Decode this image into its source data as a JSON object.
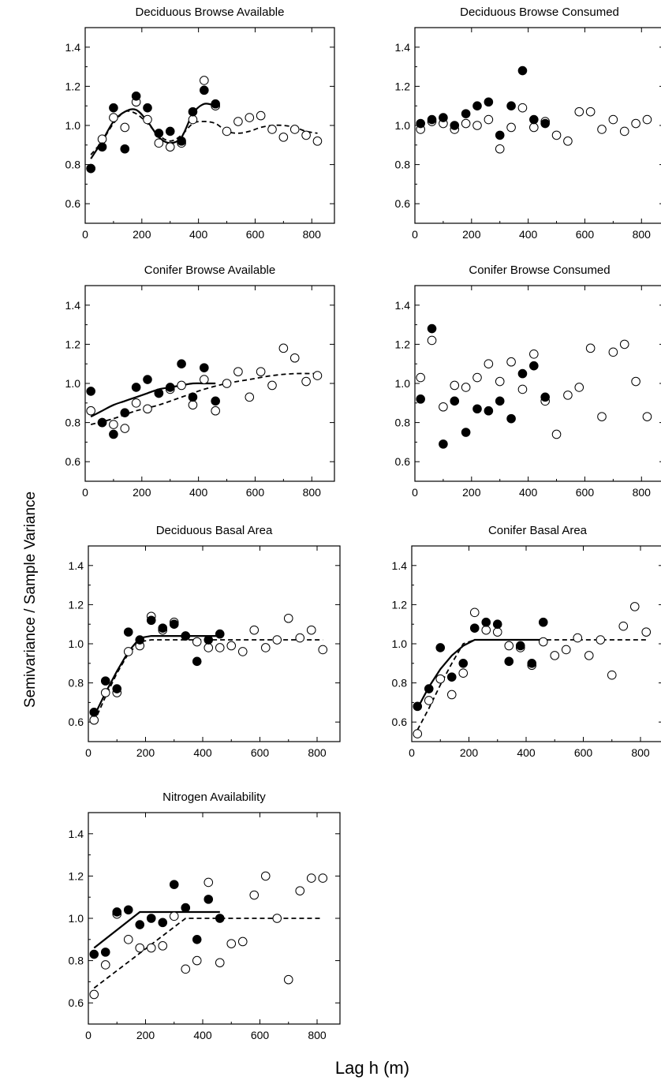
{
  "figure": {
    "ylabel": "Semivariance / Sample Variance",
    "xlabel": "Lag h (m)"
  },
  "chart_data": [
    {
      "type": "scatter",
      "title": "Deciduous Browse Available",
      "xlim": [
        0,
        880
      ],
      "ylim": [
        0.5,
        1.5
      ],
      "xticks": [
        0,
        200,
        400,
        600,
        800
      ],
      "yticks": [
        0.6,
        0.8,
        1.0,
        1.2,
        1.4
      ],
      "series": [
        {
          "marker": "filled",
          "x": [
            20,
            60,
            100,
            140,
            180,
            220,
            260,
            300,
            340,
            380,
            420,
            460
          ],
          "y": [
            0.78,
            0.89,
            1.09,
            0.88,
            1.15,
            1.09,
            0.96,
            0.97,
            0.92,
            1.07,
            1.18,
            1.11
          ]
        },
        {
          "marker": "open",
          "x": [
            20,
            60,
            100,
            140,
            180,
            220,
            260,
            300,
            340,
            380,
            420,
            460,
            500,
            540,
            580,
            620,
            660,
            700,
            740,
            780,
            820
          ],
          "y": [
            0.78,
            0.93,
            1.04,
            0.99,
            1.12,
            1.03,
            0.91,
            0.89,
            0.91,
            1.03,
            1.23,
            1.1,
            0.97,
            1.02,
            1.04,
            1.05,
            0.98,
            0.94,
            0.98,
            0.95,
            0.92
          ]
        }
      ],
      "curves": [
        {
          "style": "solid",
          "x": [
            20,
            60,
            100,
            140,
            180,
            220,
            260,
            300,
            340,
            380,
            420,
            460
          ],
          "y": [
            0.83,
            0.92,
            1.02,
            1.07,
            1.08,
            1.02,
            0.94,
            0.91,
            0.94,
            1.06,
            1.11,
            1.1
          ]
        },
        {
          "style": "dashed",
          "x": [
            20,
            60,
            100,
            140,
            180,
            220,
            260,
            300,
            340,
            380,
            420,
            460,
            500,
            540,
            580,
            620,
            660,
            700,
            740,
            780,
            820
          ],
          "y": [
            0.85,
            0.92,
            1.01,
            1.07,
            1.06,
            1.01,
            0.95,
            0.92,
            0.95,
            1.01,
            1.02,
            1.01,
            0.97,
            0.96,
            0.97,
            0.99,
            1.0,
            1.0,
            0.99,
            0.97,
            0.96
          ]
        }
      ]
    },
    {
      "type": "scatter",
      "title": "Deciduous Browse Consumed",
      "xlim": [
        0,
        880
      ],
      "ylim": [
        0.5,
        1.5
      ],
      "xticks": [
        0,
        200,
        400,
        600,
        800
      ],
      "yticks": [
        0.6,
        0.8,
        1.0,
        1.2,
        1.4
      ],
      "series": [
        {
          "marker": "filled",
          "x": [
            20,
            60,
            100,
            140,
            180,
            220,
            260,
            300,
            340,
            380,
            420,
            460
          ],
          "y": [
            1.01,
            1.03,
            1.04,
            1.0,
            1.06,
            1.1,
            1.12,
            0.95,
            1.1,
            1.28,
            1.03,
            1.01
          ]
        },
        {
          "marker": "open",
          "x": [
            20,
            60,
            100,
            140,
            180,
            220,
            260,
            300,
            340,
            380,
            420,
            460,
            500,
            540,
            580,
            620,
            660,
            700,
            740,
            780,
            820
          ],
          "y": [
            0.98,
            1.02,
            1.01,
            0.98,
            1.01,
            1.0,
            1.03,
            0.88,
            0.99,
            1.09,
            0.99,
            1.02,
            0.95,
            0.92,
            1.07,
            1.07,
            0.98,
            1.03,
            0.97,
            1.01,
            1.03
          ]
        }
      ],
      "curves": []
    },
    {
      "type": "scatter",
      "title": "Conifer Browse Available",
      "xlim": [
        0,
        880
      ],
      "ylim": [
        0.5,
        1.5
      ],
      "xticks": [
        0,
        200,
        400,
        600,
        800
      ],
      "yticks": [
        0.6,
        0.8,
        1.0,
        1.2,
        1.4
      ],
      "series": [
        {
          "marker": "filled",
          "x": [
            20,
            60,
            100,
            140,
            180,
            220,
            260,
            300,
            340,
            380,
            420,
            460
          ],
          "y": [
            0.96,
            0.8,
            0.74,
            0.85,
            0.98,
            1.02,
            0.95,
            0.98,
            1.1,
            0.93,
            1.08,
            0.91
          ]
        },
        {
          "marker": "open",
          "x": [
            20,
            60,
            100,
            140,
            180,
            220,
            260,
            300,
            340,
            380,
            420,
            460,
            500,
            540,
            580,
            620,
            660,
            700,
            740,
            780,
            820
          ],
          "y": [
            0.86,
            0.8,
            0.79,
            0.77,
            0.9,
            0.87,
            0.95,
            0.97,
            0.99,
            0.89,
            1.02,
            0.86,
            1.0,
            1.06,
            0.93,
            1.06,
            0.99,
            1.18,
            1.13,
            1.01,
            1.04
          ]
        }
      ],
      "curves": [
        {
          "style": "solid",
          "x": [
            20,
            60,
            100,
            140,
            180,
            220,
            260,
            300,
            340,
            380,
            420,
            460
          ],
          "y": [
            0.83,
            0.86,
            0.89,
            0.91,
            0.93,
            0.95,
            0.97,
            0.98,
            0.99,
            1.0,
            1.0,
            1.0
          ]
        },
        {
          "style": "dashed",
          "x": [
            20,
            100,
            180,
            260,
            340,
            420,
            500,
            580,
            660,
            740,
            820
          ],
          "y": [
            0.79,
            0.82,
            0.86,
            0.89,
            0.93,
            0.97,
            1.0,
            1.02,
            1.04,
            1.05,
            1.05
          ]
        }
      ]
    },
    {
      "type": "scatter",
      "title": "Conifer Browse Consumed",
      "xlim": [
        0,
        880
      ],
      "ylim": [
        0.5,
        1.5
      ],
      "xticks": [
        0,
        200,
        400,
        600,
        800
      ],
      "yticks": [
        0.6,
        0.8,
        1.0,
        1.2,
        1.4
      ],
      "series": [
        {
          "marker": "filled",
          "x": [
            20,
            60,
            100,
            140,
            180,
            220,
            260,
            300,
            340,
            380,
            420,
            460
          ],
          "y": [
            0.92,
            1.28,
            0.69,
            0.91,
            0.75,
            0.87,
            0.86,
            0.91,
            0.82,
            1.05,
            1.09,
            0.93
          ]
        },
        {
          "marker": "open",
          "x": [
            20,
            60,
            100,
            140,
            180,
            220,
            260,
            300,
            340,
            380,
            420,
            460,
            500,
            540,
            580,
            620,
            660,
            700,
            740,
            780,
            820
          ],
          "y": [
            1.03,
            1.22,
            0.88,
            0.99,
            0.98,
            1.03,
            1.1,
            1.01,
            1.11,
            0.97,
            1.15,
            0.91,
            0.74,
            0.94,
            0.98,
            1.18,
            0.83,
            1.16,
            1.2,
            1.01,
            0.83
          ]
        }
      ],
      "curves": []
    },
    {
      "type": "scatter",
      "title": "Deciduous Basal Area",
      "xlim": [
        0,
        880
      ],
      "ylim": [
        0.5,
        1.5
      ],
      "xticks": [
        0,
        200,
        400,
        600,
        800
      ],
      "yticks": [
        0.6,
        0.8,
        1.0,
        1.2,
        1.4
      ],
      "series": [
        {
          "marker": "filled",
          "x": [
            20,
            60,
            100,
            140,
            180,
            220,
            260,
            300,
            340,
            380,
            420,
            460
          ],
          "y": [
            0.65,
            0.81,
            0.77,
            1.06,
            1.02,
            1.12,
            1.08,
            1.1,
            1.04,
            0.91,
            1.02,
            1.05
          ]
        },
        {
          "marker": "open",
          "x": [
            20,
            60,
            100,
            140,
            180,
            220,
            260,
            300,
            340,
            380,
            420,
            460,
            500,
            540,
            580,
            620,
            660,
            700,
            740,
            780,
            820
          ],
          "y": [
            0.61,
            0.75,
            0.75,
            0.96,
            0.99,
            1.14,
            1.07,
            1.11,
            1.04,
            1.01,
            0.98,
            0.98,
            0.99,
            0.96,
            1.07,
            0.98,
            1.02,
            1.13,
            1.03,
            1.07,
            0.97
          ]
        }
      ],
      "curves": [
        {
          "style": "solid",
          "x": [
            20,
            60,
            100,
            140,
            180,
            220,
            460
          ],
          "y": [
            0.63,
            0.75,
            0.86,
            0.96,
            1.03,
            1.04,
            1.04
          ]
        },
        {
          "style": "dashed",
          "x": [
            20,
            60,
            100,
            140,
            180,
            220,
            820
          ],
          "y": [
            0.6,
            0.73,
            0.85,
            0.95,
            1.01,
            1.02,
            1.02
          ]
        }
      ]
    },
    {
      "type": "scatter",
      "title": "Conifer Basal Area",
      "xlim": [
        0,
        880
      ],
      "ylim": [
        0.5,
        1.5
      ],
      "xticks": [
        0,
        200,
        400,
        600,
        800
      ],
      "yticks": [
        0.6,
        0.8,
        1.0,
        1.2,
        1.4
      ],
      "series": [
        {
          "marker": "filled",
          "x": [
            20,
            60,
            100,
            140,
            180,
            220,
            260,
            300,
            340,
            380,
            420,
            460
          ],
          "y": [
            0.68,
            0.77,
            0.98,
            0.83,
            0.9,
            1.08,
            1.11,
            1.1,
            0.91,
            0.99,
            0.9,
            1.11
          ]
        },
        {
          "marker": "open",
          "x": [
            20,
            60,
            100,
            140,
            180,
            220,
            260,
            300,
            340,
            380,
            420,
            460,
            500,
            540,
            580,
            620,
            660,
            700,
            740,
            780,
            820
          ],
          "y": [
            0.54,
            0.71,
            0.82,
            0.74,
            0.85,
            1.16,
            1.07,
            1.06,
            0.99,
            0.98,
            0.89,
            1.01,
            0.94,
            0.97,
            1.03,
            0.94,
            1.02,
            0.84,
            1.09,
            1.19,
            1.06
          ]
        }
      ],
      "curves": [
        {
          "style": "solid",
          "x": [
            20,
            60,
            100,
            140,
            180,
            220,
            460
          ],
          "y": [
            0.67,
            0.78,
            0.87,
            0.94,
            0.99,
            1.02,
            1.02
          ]
        },
        {
          "style": "dashed",
          "x": [
            20,
            60,
            100,
            140,
            180,
            220,
            820
          ],
          "y": [
            0.56,
            0.67,
            0.79,
            0.9,
            1.0,
            1.02,
            1.02
          ]
        }
      ]
    },
    {
      "type": "scatter",
      "title": "Nitrogen Availability",
      "xlim": [
        0,
        880
      ],
      "ylim": [
        0.5,
        1.5
      ],
      "xticks": [
        0,
        200,
        400,
        600,
        800
      ],
      "yticks": [
        0.6,
        0.8,
        1.0,
        1.2,
        1.4
      ],
      "series": [
        {
          "marker": "filled",
          "x": [
            20,
            60,
            100,
            140,
            180,
            220,
            260,
            300,
            340,
            380,
            420,
            460
          ],
          "y": [
            0.83,
            0.84,
            1.03,
            1.04,
            0.97,
            1.0,
            0.98,
            1.16,
            1.05,
            0.9,
            1.09,
            1.0
          ]
        },
        {
          "marker": "open",
          "x": [
            20,
            60,
            100,
            140,
            180,
            220,
            260,
            300,
            340,
            380,
            420,
            460,
            500,
            540,
            580,
            620,
            660,
            700,
            740,
            780,
            820
          ],
          "y": [
            0.64,
            0.78,
            1.02,
            0.9,
            0.86,
            0.86,
            0.87,
            1.01,
            0.76,
            0.8,
            1.17,
            0.79,
            0.88,
            0.89,
            1.11,
            1.2,
            1.0,
            0.71,
            1.13,
            1.19,
            1.19
          ]
        }
      ],
      "curves": [
        {
          "style": "solid",
          "x": [
            20,
            180,
            460
          ],
          "y": [
            0.86,
            1.03,
            1.03
          ]
        },
        {
          "style": "dashed",
          "x": [
            20,
            340,
            820
          ],
          "y": [
            0.67,
            1.0,
            1.0
          ]
        }
      ]
    }
  ]
}
